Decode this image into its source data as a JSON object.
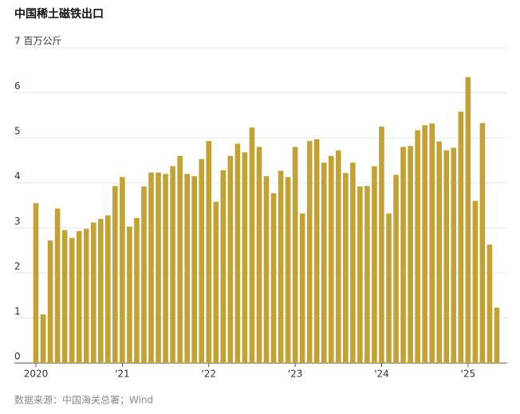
{
  "chart_data": {
    "type": "bar",
    "title": "中国稀土磁铁出口",
    "source": "数据来源：中国海关总署；Wind",
    "categories": [
      "2020",
      null,
      null,
      null,
      null,
      null,
      null,
      null,
      null,
      null,
      null,
      null,
      "'21",
      null,
      null,
      null,
      null,
      null,
      null,
      null,
      null,
      null,
      null,
      null,
      "'22",
      null,
      null,
      null,
      null,
      null,
      null,
      null,
      null,
      null,
      null,
      null,
      "'23",
      null,
      null,
      null,
      null,
      null,
      null,
      null,
      null,
      null,
      null,
      null,
      "'24",
      null,
      null,
      null,
      null,
      null,
      null,
      null,
      null,
      null,
      null,
      null,
      "'25",
      null,
      null,
      null,
      null
    ],
    "values": [
      3.55,
      1.08,
      2.72,
      3.43,
      2.95,
      2.78,
      2.93,
      2.98,
      3.12,
      3.2,
      3.28,
      3.93,
      4.13,
      3.03,
      3.22,
      3.92,
      4.23,
      4.23,
      4.2,
      4.37,
      4.6,
      4.2,
      4.15,
      4.53,
      4.93,
      3.58,
      4.28,
      4.6,
      4.87,
      4.68,
      5.23,
      4.8,
      4.15,
      3.77,
      4.27,
      4.13,
      4.8,
      3.32,
      4.93,
      4.97,
      4.45,
      4.6,
      4.72,
      4.22,
      4.45,
      3.92,
      3.93,
      4.37,
      5.25,
      3.32,
      4.18,
      4.8,
      4.82,
      5.17,
      5.28,
      5.32,
      4.92,
      4.72,
      4.78,
      5.58,
      6.35,
      3.6,
      5.33,
      2.63,
      1.23
    ],
    "color": "#c2a235",
    "ylim": [
      0,
      7
    ],
    "yticks": [
      0,
      1,
      2,
      3,
      4,
      5,
      6,
      {
        "value": 7,
        "label": "7 百万公斤"
      }
    ],
    "grid": true
  }
}
